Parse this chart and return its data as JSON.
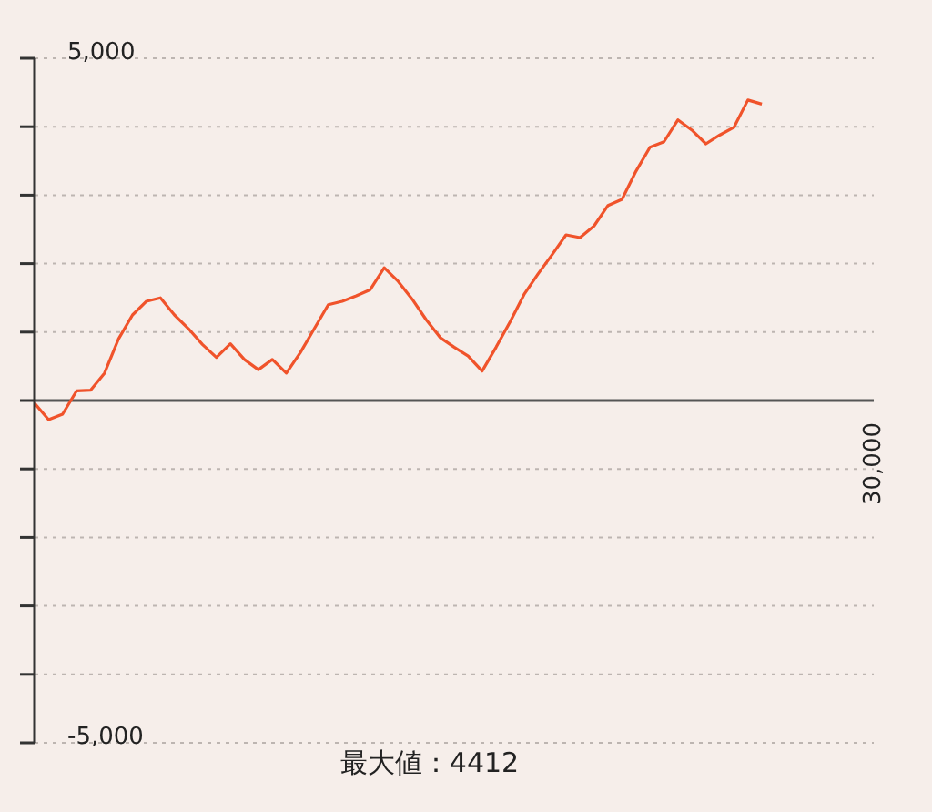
{
  "chart_data": {
    "type": "line",
    "annotations": [
      "最大値：4412",
      "30,000"
    ],
    "categories": [
      null,
      null,
      null,
      null,
      null,
      null,
      null,
      null,
      null,
      null,
      null,
      null,
      null,
      null,
      null,
      null,
      null,
      null,
      null,
      null,
      null,
      null,
      null,
      null,
      null,
      null,
      null,
      null,
      null,
      null,
      null,
      null,
      null,
      null,
      null,
      null,
      null,
      null,
      null,
      null,
      null,
      null,
      null,
      null,
      null,
      null,
      null,
      null,
      null,
      null,
      null,
      null,
      null,
      null,
      null,
      null,
      null,
      null,
      null,
      null,
      null
    ],
    "series": [
      {
        "color": "#f0532b",
        "values": [
          -40,
          -280,
          -200,
          140,
          150,
          400,
          900,
          1250,
          1450,
          1500,
          1250,
          1050,
          820,
          630,
          830,
          600,
          450,
          600,
          400,
          700,
          1050,
          1400,
          1450,
          1530,
          1620,
          1940,
          1740,
          1480,
          1180,
          920,
          780,
          650,
          430,
          780,
          1150,
          1550,
          1850,
          2130,
          2420,
          2380,
          2550,
          2850,
          2940,
          3350,
          3700,
          3780,
          4100,
          3950,
          3750,
          3880,
          3990,
          4390,
          4330,
          null,
          null,
          null,
          null,
          null,
          null,
          null,
          null
        ]
      }
    ],
    "ylim": [
      -5000,
      5000
    ],
    "yticks": [
      {
        "value": -5000,
        "label": "-5,000"
      },
      {
        "value": -4000,
        "label": null
      },
      {
        "value": -3000,
        "label": null
      },
      {
        "value": -2000,
        "label": null
      },
      {
        "value": -1000,
        "label": null
      },
      {
        "value": 0,
        "label": null
      },
      {
        "value": 1000,
        "label": null
      },
      {
        "value": 2000,
        "label": null
      },
      {
        "value": 3000,
        "label": null
      },
      {
        "value": 4000,
        "label": null
      },
      {
        "value": 5000,
        "label": "5,000"
      }
    ],
    "grid": "y",
    "marker": "none",
    "line_style": "solid"
  }
}
